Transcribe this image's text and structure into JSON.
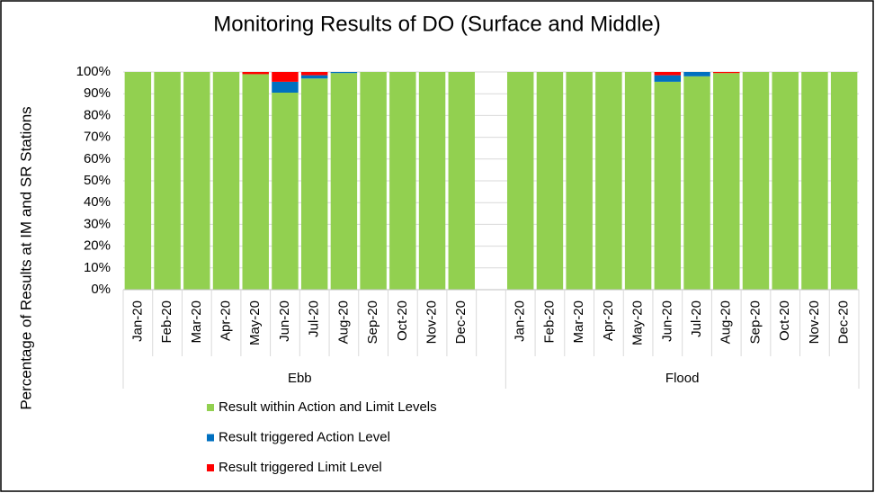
{
  "chart_data": {
    "type": "stacked_bar",
    "title": "Monitoring Results of DO (Surface and Middle)",
    "y_label": "Percentage of Results at IM and SR Stations",
    "category_groups": [
      "Ebb",
      "Flood"
    ],
    "categories": [
      "Jan-20",
      "Feb-20",
      "Mar-20",
      "Apr-20",
      "May-20",
      "Jun-20",
      "Jul-20",
      "Aug-20",
      "Sep-20",
      "Oct-20",
      "Nov-20",
      "Dec-20",
      "Jan-20",
      "Feb-20",
      "Mar-20",
      "Apr-20",
      "May-20",
      "Jun-20",
      "Jul-20",
      "Aug-20",
      "Sep-20",
      "Oct-20",
      "Nov-20",
      "Dec-20"
    ],
    "series": [
      {
        "name": "Result within Action and Limit Levels",
        "color": "#92d050",
        "values": [
          100,
          100,
          100,
          100,
          99,
          90.5,
          97,
          99.5,
          100,
          100,
          100,
          100,
          100,
          100,
          100,
          100,
          100,
          95.5,
          98,
          99.5,
          100,
          100,
          100,
          100
        ]
      },
      {
        "name": "Result triggered Action Level",
        "color": "#0070c0",
        "values": [
          0,
          0,
          0,
          0,
          0,
          5,
          1.5,
          0.5,
          0,
          0,
          0,
          0,
          0,
          0,
          0,
          0,
          0,
          3,
          2,
          0,
          0,
          0,
          0,
          0
        ]
      },
      {
        "name": "Result triggered Limit Level",
        "color": "#ff0000",
        "values": [
          0,
          0,
          0,
          0,
          1,
          4.5,
          1.5,
          0,
          0,
          0,
          0,
          0,
          0,
          0,
          0,
          0,
          0,
          1.5,
          0,
          0.5,
          0,
          0,
          0,
          0
        ]
      }
    ],
    "ylim": [
      0,
      100
    ],
    "yticks": [
      {
        "value": 0,
        "label": "0%"
      },
      {
        "value": 10,
        "label": "10%"
      },
      {
        "value": 20,
        "label": "20%"
      },
      {
        "value": 30,
        "label": "30%"
      },
      {
        "value": 40,
        "label": "40%"
      },
      {
        "value": 50,
        "label": "50%"
      },
      {
        "value": 60,
        "label": "60%"
      },
      {
        "value": 70,
        "label": "70%"
      },
      {
        "value": 80,
        "label": "80%"
      },
      {
        "value": 90,
        "label": "90%"
      },
      {
        "value": 100,
        "label": "100%"
      }
    ],
    "grid": true
  }
}
